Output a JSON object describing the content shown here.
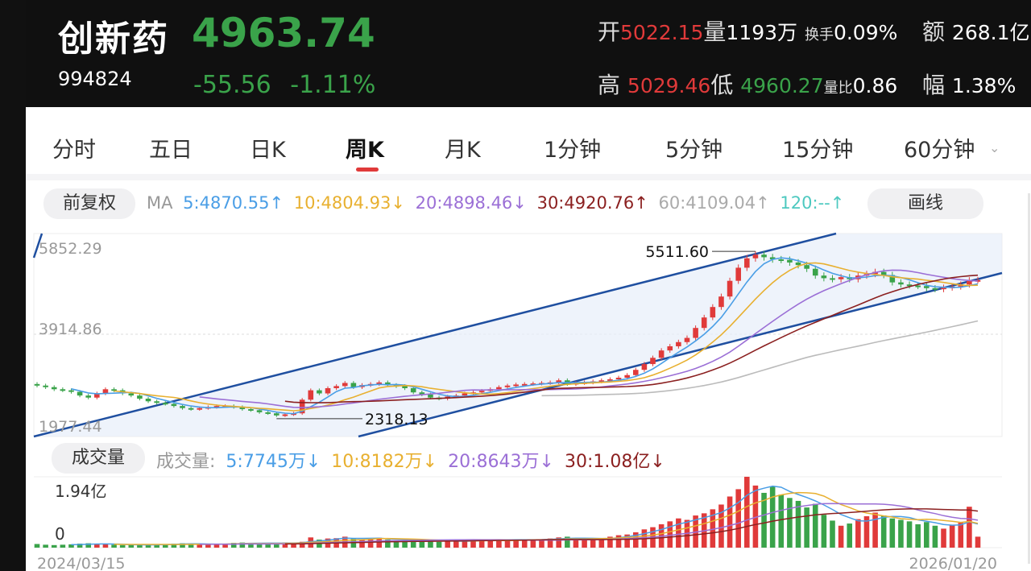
{
  "header": {
    "name": "创新药",
    "code": "994824",
    "price": "4963.74",
    "change": "-55.56",
    "change_pct": "-1.11%",
    "open_label": "开",
    "open_value": "5022.15",
    "vol_label": "量",
    "vol_value": "1193万",
    "turnover_label": "换手",
    "turnover_value": "0.09%",
    "amount_label": "额",
    "amount_value": "268.1亿",
    "high_label": "高",
    "high_value": "5029.46",
    "low_label": "低",
    "low_value": "4960.27",
    "ratio_label": "量比",
    "ratio_value": "0.86",
    "amp_label": "幅",
    "amp_value": "1.38%"
  },
  "tabs": [
    "分时",
    "五日",
    "日K",
    "周K",
    "月K",
    "1分钟",
    "5分钟",
    "15分钟",
    "60分钟"
  ],
  "active_tab": "周K",
  "toolbar": {
    "adjust_label": "前复权",
    "draw_label": "画线",
    "volume_label": "成交量"
  },
  "ma_legend": {
    "prefix": "MA",
    "items": [
      {
        "text": "5:4870.55↑",
        "color": "#4a9ee6"
      },
      {
        "text": "10:4804.93↓",
        "color": "#e8b030"
      },
      {
        "text": "20:4898.46↓",
        "color": "#9b6fd6"
      },
      {
        "text": "30:4920.76↑",
        "color": "#8b2020"
      },
      {
        "text": "60:4109.04↑",
        "color": "#aaaaaa"
      },
      {
        "text": "120:--↑",
        "color": "#4ec9c0"
      }
    ]
  },
  "vol_legend": {
    "prefix": "成交量:",
    "items": [
      {
        "text": "5:7745万↓",
        "color": "#4a9ee6"
      },
      {
        "text": "10:8182万↓",
        "color": "#e8b030"
      },
      {
        "text": "20:8643万↓",
        "color": "#9b6fd6"
      },
      {
        "text": "30:1.08亿↓",
        "color": "#8b2020"
      }
    ]
  },
  "colors": {
    "up": "#e03a3a",
    "down": "#3aa34a",
    "channel": "#1f4fa0"
  },
  "chart_data": {
    "type": "candlestick",
    "price_axis_labels": [
      "5852.29",
      "3914.86",
      "1977.44"
    ],
    "ylim": [
      1977.44,
      5852.29
    ],
    "max_annotation": "5511.60",
    "min_annotation": "2318.13",
    "max_value": 5511.6,
    "min_value": 2318.13,
    "volume_axis_top": "1.94亿",
    "volume_axis_bottom": "0",
    "x_start": "2024/03/15",
    "x_end": "2026/01/20",
    "closes": [
      2950,
      2920,
      2880,
      2860,
      2830,
      2760,
      2720,
      2800,
      2880,
      2860,
      2800,
      2760,
      2700,
      2650,
      2620,
      2600,
      2560,
      2520,
      2500,
      2520,
      2540,
      2560,
      2560,
      2540,
      2500,
      2480,
      2440,
      2420,
      2380,
      2400,
      2420,
      2680,
      2860,
      2800,
      2900,
      2940,
      3000,
      2920,
      2960,
      2980,
      3010,
      2960,
      2940,
      2900,
      2820,
      2780,
      2720,
      2700,
      2740,
      2760,
      2800,
      2820,
      2850,
      2880,
      2920,
      2950,
      2970,
      2980,
      2990,
      3000,
      3010,
      3050,
      2980,
      3000,
      3010,
      3030,
      3050,
      3070,
      3100,
      3150,
      3250,
      3360,
      3480,
      3620,
      3700,
      3780,
      3860,
      4050,
      4250,
      4450,
      4650,
      4950,
      5200,
      5380,
      5450,
      5400,
      5360,
      5350,
      5300,
      5250,
      5180,
      5050,
      5000,
      4980,
      5020,
      4980,
      5050,
      5080,
      5120,
      5060,
      4920,
      4880,
      4860,
      4850,
      4810,
      4790,
      4820,
      4840,
      4880,
      4960,
      4963.74
    ],
    "volumes": [
      0.1,
      0.08,
      0.07,
      0.08,
      0.09,
      0.11,
      0.12,
      0.1,
      0.09,
      0.08,
      0.07,
      0.08,
      0.07,
      0.08,
      0.09,
      0.1,
      0.11,
      0.12,
      0.1,
      0.09,
      0.08,
      0.1,
      0.11,
      0.13,
      0.14,
      0.12,
      0.11,
      0.12,
      0.13,
      0.14,
      0.12,
      0.16,
      0.28,
      0.22,
      0.25,
      0.26,
      0.3,
      0.24,
      0.22,
      0.26,
      0.27,
      0.22,
      0.2,
      0.18,
      0.19,
      0.2,
      0.18,
      0.16,
      0.17,
      0.18,
      0.19,
      0.2,
      0.22,
      0.22,
      0.21,
      0.2,
      0.22,
      0.23,
      0.22,
      0.22,
      0.25,
      0.28,
      0.3,
      0.24,
      0.22,
      0.24,
      0.26,
      0.3,
      0.34,
      0.36,
      0.42,
      0.5,
      0.56,
      0.64,
      0.72,
      0.8,
      0.76,
      0.88,
      0.94,
      1.05,
      1.18,
      1.4,
      1.6,
      1.94,
      1.7,
      1.5,
      1.68,
      1.45,
      1.36,
      1.28,
      1.1,
      1.2,
      0.9,
      0.74,
      0.6,
      0.66,
      0.78,
      0.86,
      0.96,
      0.88,
      0.8,
      0.76,
      0.72,
      0.64,
      0.7,
      0.6,
      0.52,
      0.62,
      0.68,
      1.12,
      0.3
    ]
  }
}
